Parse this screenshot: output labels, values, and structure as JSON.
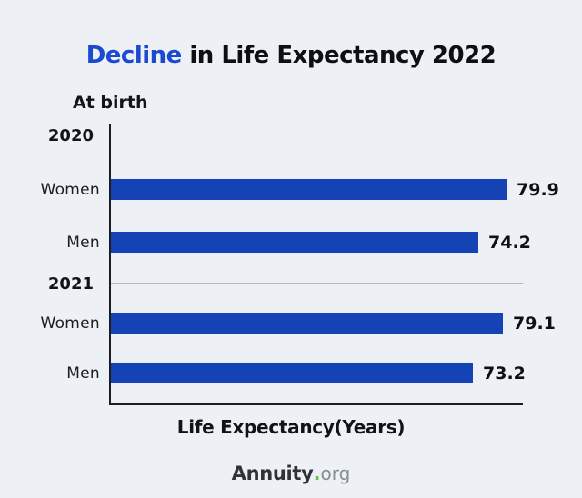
{
  "title": {
    "highlight": "Decline",
    "rest": " in Life Expectancy 2022"
  },
  "footer": {
    "brand": "Annuity",
    "dot": ".",
    "suffix": "org"
  },
  "colors": {
    "background": "#edf1f6",
    "bar": "#1542b4",
    "title_highlight": "#1b4ad1",
    "separator": "#b3b8be",
    "dot_green": "#5fc44a"
  },
  "chart_data": {
    "type": "bar",
    "orientation": "horizontal",
    "title": "Decline in Life Expectancy 2022",
    "subtitle": "At birth",
    "xlabel": "Life Expectancy(Years)",
    "xlim": [
      0,
      83.5
    ],
    "grid": false,
    "value_labels": true,
    "groups": [
      {
        "year": "2020",
        "bars": [
          {
            "label": "Women",
            "value": 79.9
          },
          {
            "label": "Men",
            "value": 74.2
          }
        ]
      },
      {
        "year": "2021",
        "bars": [
          {
            "label": "Women",
            "value": 79.1
          },
          {
            "label": "Men",
            "value": 73.2
          }
        ]
      }
    ]
  }
}
